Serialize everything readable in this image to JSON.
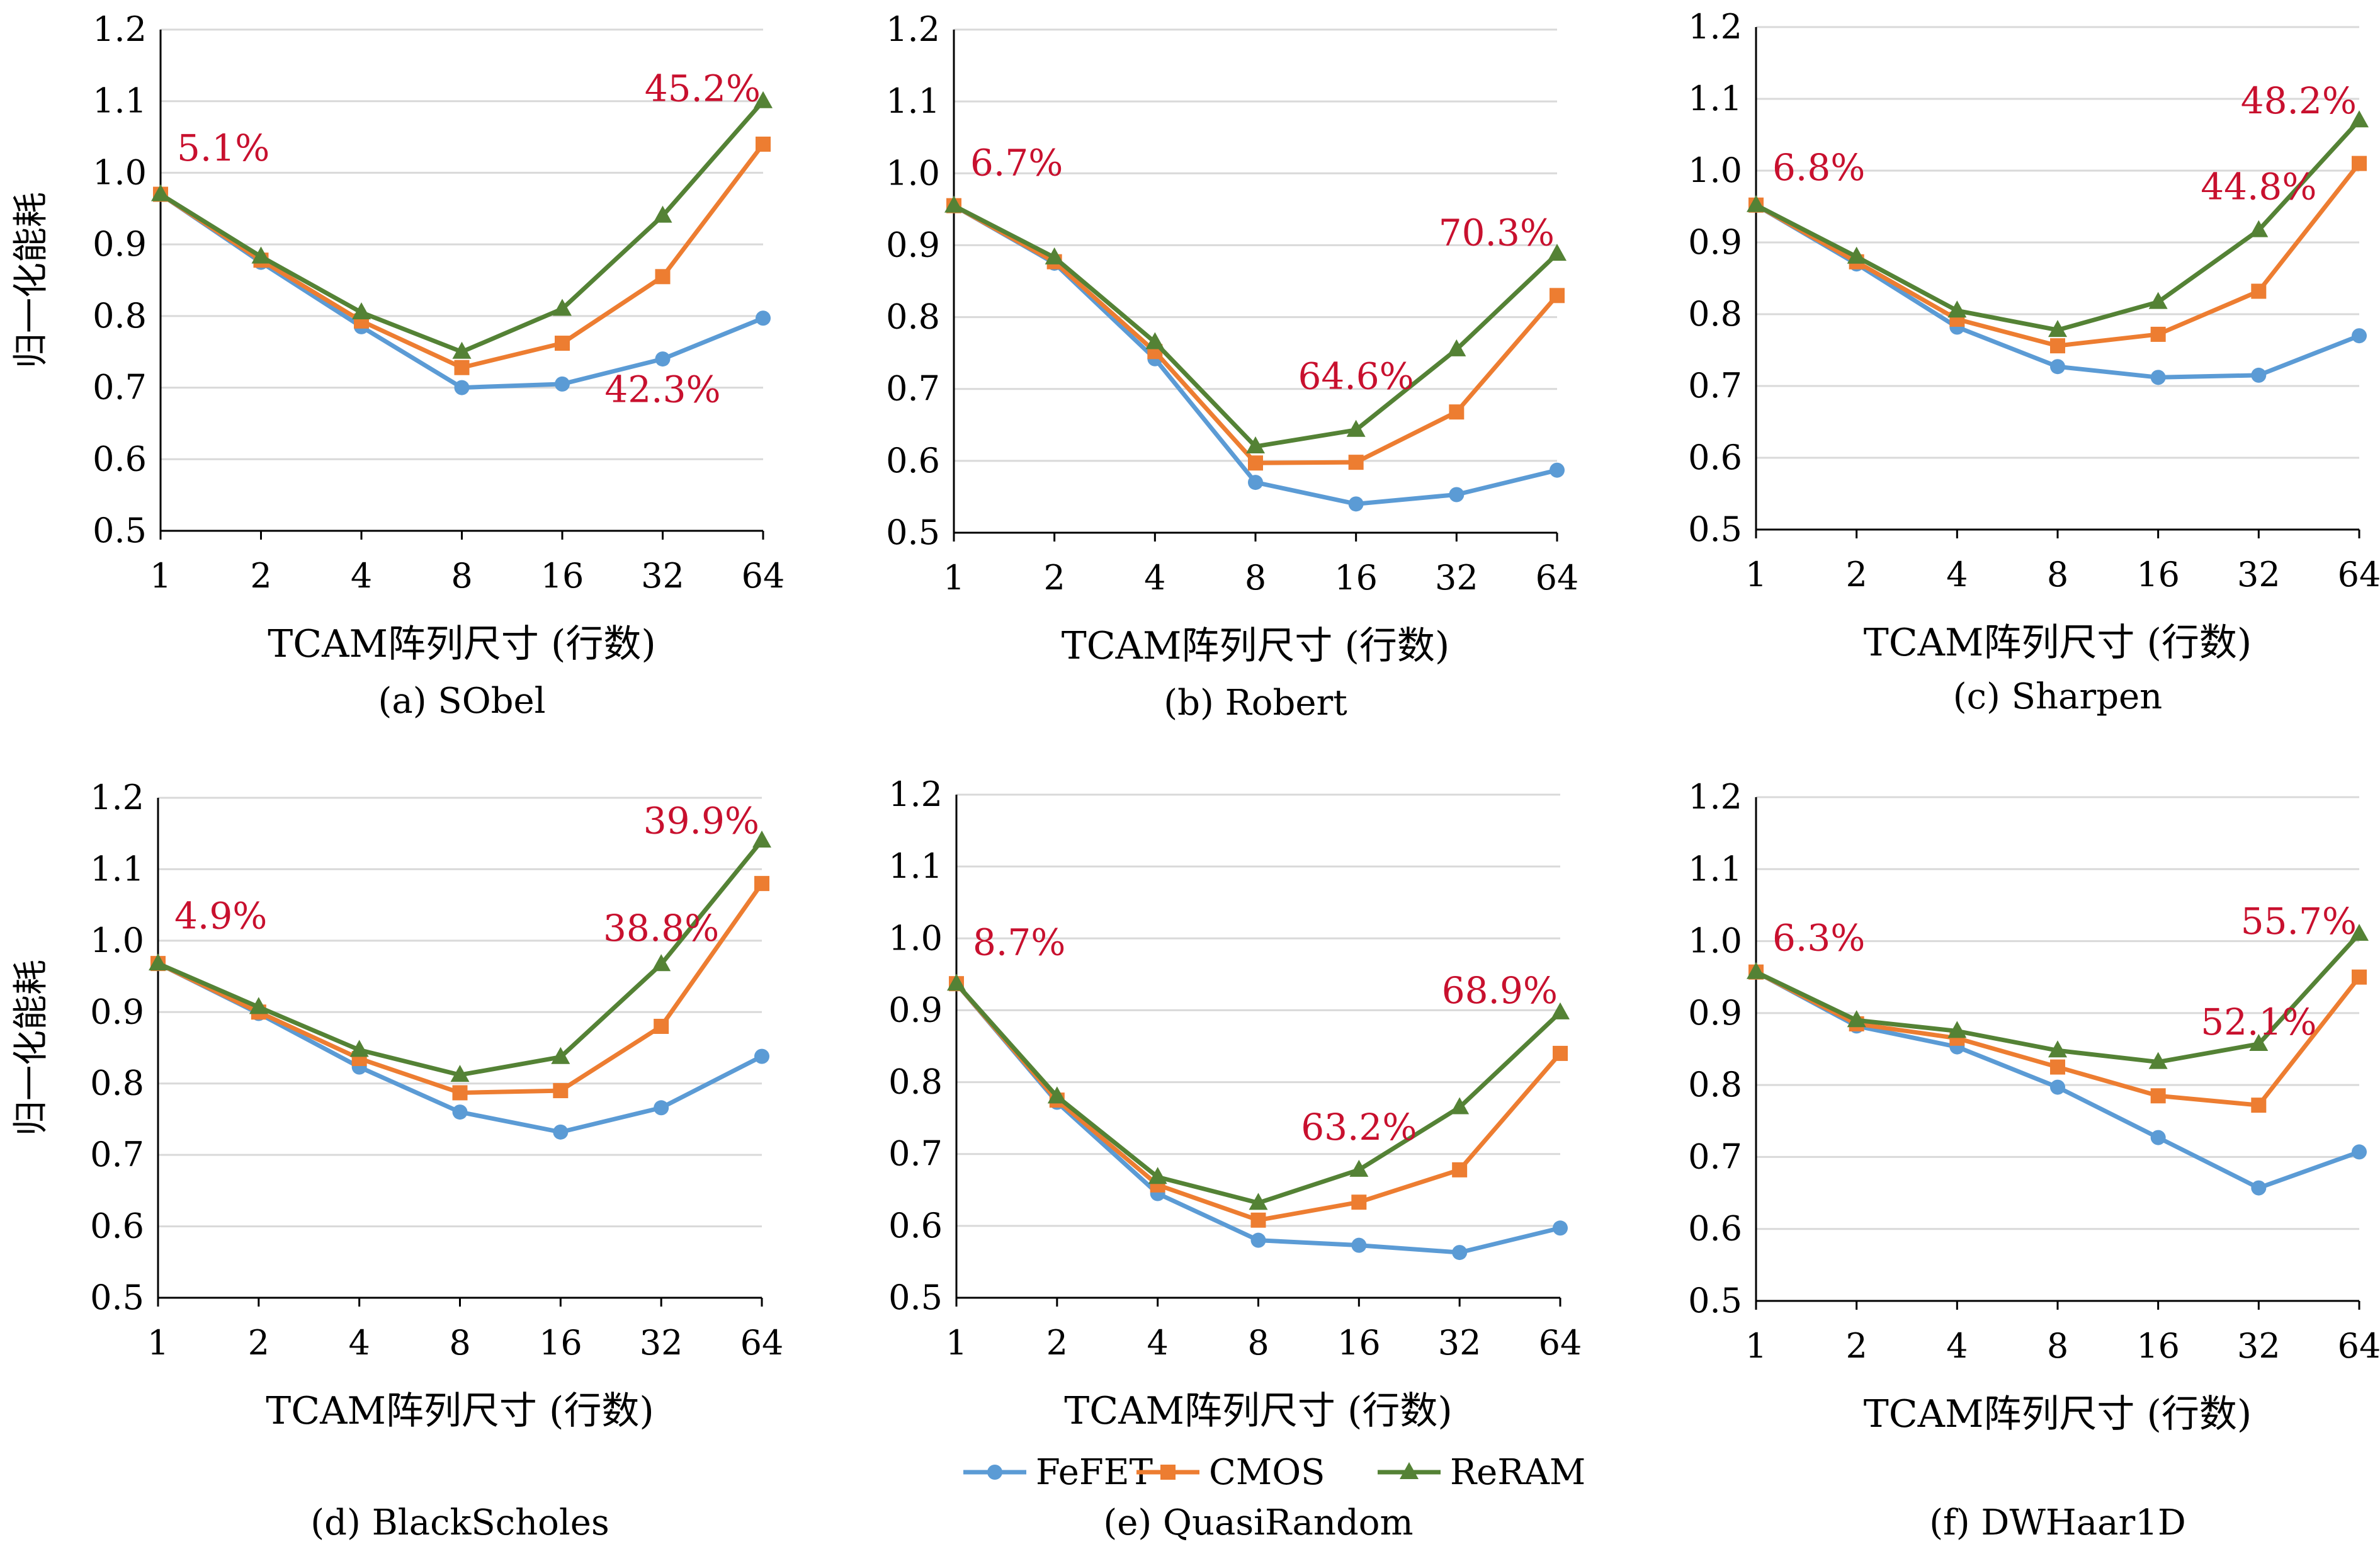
{
  "colors": {
    "FeFET": "#5b9bd5",
    "CMOS": "#ed7d31",
    "ReRAM": "#548235",
    "annotation": "#c8102e",
    "grid": "#d9d9d9"
  },
  "legend": [
    {
      "name": "FeFET",
      "marker": "circle"
    },
    {
      "name": "CMOS",
      "marker": "square"
    },
    {
      "name": "ReRAM",
      "marker": "triangle"
    }
  ],
  "chart_data": [
    {
      "type": "line",
      "title": "(a) SObel",
      "xlabel": "TCAM阵列尺寸 (行数)",
      "ylabel": "归一化能耗",
      "categories": [
        "1",
        "2",
        "4",
        "8",
        "16",
        "32",
        "64"
      ],
      "ylim": [
        0.5,
        1.2
      ],
      "yticks": [
        "0.5",
        "0.6",
        "0.7",
        "0.8",
        "0.9",
        "1.0",
        "1.1",
        "1.2"
      ],
      "grid": true,
      "series": [
        {
          "name": "FeFET",
          "values": [
            0.97,
            0.875,
            0.785,
            0.7,
            0.705,
            0.74,
            0.797
          ]
        },
        {
          "name": "CMOS",
          "values": [
            0.97,
            0.878,
            0.793,
            0.728,
            0.762,
            0.855,
            1.04
          ]
        },
        {
          "name": "ReRAM",
          "values": [
            0.97,
            0.883,
            0.805,
            0.75,
            0.81,
            0.94,
            1.1
          ]
        }
      ],
      "annotations": [
        {
          "text": "5.1%",
          "x": 0,
          "y": 1.01
        },
        {
          "text": "45.2%",
          "x": 6,
          "y": 1.1
        },
        {
          "text": "42.3%",
          "x": 5,
          "y": 0.68
        }
      ]
    },
    {
      "type": "line",
      "title": "(b) Robert",
      "xlabel": "TCAM阵列尺寸 (行数)",
      "ylabel": "",
      "categories": [
        "1",
        "2",
        "4",
        "8",
        "16",
        "32",
        "64"
      ],
      "ylim": [
        0.5,
        1.2
      ],
      "yticks": [
        "0.5",
        "0.6",
        "0.7",
        "0.8",
        "0.9",
        "1.0",
        "1.1",
        "1.2"
      ],
      "grid": true,
      "series": [
        {
          "name": "FeFET",
          "values": [
            0.955,
            0.875,
            0.742,
            0.57,
            0.54,
            0.553,
            0.587
          ]
        },
        {
          "name": "CMOS",
          "values": [
            0.955,
            0.877,
            0.752,
            0.597,
            0.598,
            0.668,
            0.83
          ]
        },
        {
          "name": "ReRAM",
          "values": [
            0.955,
            0.883,
            0.765,
            0.62,
            0.643,
            0.755,
            0.888
          ]
        }
      ],
      "annotations": [
        {
          "text": "6.7%",
          "x": 0,
          "y": 0.99
        },
        {
          "text": "70.3%",
          "x": 6,
          "y": 0.9
        },
        {
          "text": "64.6%",
          "x": 4,
          "y": 0.7
        }
      ]
    },
    {
      "type": "line",
      "title": "(c) Sharpen",
      "xlabel": "TCAM阵列尺寸 (行数)",
      "ylabel": "",
      "categories": [
        "1",
        "2",
        "4",
        "8",
        "16",
        "32",
        "64"
      ],
      "ylim": [
        0.5,
        1.2
      ],
      "yticks": [
        "0.5",
        "0.6",
        "0.7",
        "0.8",
        "0.9",
        "1.0",
        "1.1",
        "1.2"
      ],
      "grid": true,
      "series": [
        {
          "name": "FeFET",
          "values": [
            0.952,
            0.87,
            0.782,
            0.727,
            0.712,
            0.715,
            0.77
          ]
        },
        {
          "name": "CMOS",
          "values": [
            0.952,
            0.873,
            0.793,
            0.756,
            0.772,
            0.832,
            1.01
          ]
        },
        {
          "name": "ReRAM",
          "values": [
            0.952,
            0.88,
            0.805,
            0.778,
            0.817,
            0.917,
            1.07
          ]
        }
      ],
      "annotations": [
        {
          "text": "6.8%",
          "x": 0,
          "y": 0.98
        },
        {
          "text": "48.2%",
          "x": 6,
          "y": 1.08
        },
        {
          "text": "44.8%",
          "x": 5,
          "y": 0.96
        }
      ]
    },
    {
      "type": "line",
      "title": "(d) BlackScholes",
      "xlabel": "TCAM阵列尺寸 (行数)",
      "ylabel": "归一化能耗",
      "categories": [
        "1",
        "2",
        "4",
        "8",
        "16",
        "32",
        "64"
      ],
      "ylim": [
        0.5,
        1.2
      ],
      "yticks": [
        "0.5",
        "0.6",
        "0.7",
        "0.8",
        "0.9",
        "1.0",
        "1.1",
        "1.2"
      ],
      "grid": true,
      "series": [
        {
          "name": "FeFET",
          "values": [
            0.968,
            0.898,
            0.823,
            0.76,
            0.732,
            0.766,
            0.838
          ]
        },
        {
          "name": "CMOS",
          "values": [
            0.968,
            0.9,
            0.835,
            0.787,
            0.79,
            0.88,
            1.08
          ]
        },
        {
          "name": "ReRAM",
          "values": [
            0.968,
            0.907,
            0.847,
            0.812,
            0.837,
            0.967,
            1.14
          ]
        }
      ],
      "annotations": [
        {
          "text": "4.9%",
          "x": 0,
          "y": 1.01
        },
        {
          "text": "39.9%",
          "x": 6,
          "y": 1.15
        },
        {
          "text": "38.8%",
          "x": 5,
          "y": 1.0
        }
      ]
    },
    {
      "type": "line",
      "title": "(e) QuasiRandom",
      "xlabel": "TCAM阵列尺寸 (行数)",
      "ylabel": "",
      "categories": [
        "1",
        "2",
        "4",
        "8",
        "16",
        "32",
        "64"
      ],
      "ylim": [
        0.5,
        1.2
      ],
      "yticks": [
        "0.5",
        "0.6",
        "0.7",
        "0.8",
        "0.9",
        "1.0",
        "1.1",
        "1.2"
      ],
      "grid": true,
      "series": [
        {
          "name": "FeFET",
          "values": [
            0.937,
            0.772,
            0.645,
            0.58,
            0.573,
            0.563,
            0.597
          ]
        },
        {
          "name": "CMOS",
          "values": [
            0.937,
            0.775,
            0.657,
            0.608,
            0.633,
            0.678,
            0.84
          ]
        },
        {
          "name": "ReRAM",
          "values": [
            0.937,
            0.78,
            0.668,
            0.632,
            0.678,
            0.765,
            0.897
          ]
        }
      ],
      "annotations": [
        {
          "text": "8.7%",
          "x": 0,
          "y": 0.97
        },
        {
          "text": "68.9%",
          "x": 6,
          "y": 0.91
        },
        {
          "text": "63.2%",
          "x": 4,
          "y": 0.72
        }
      ]
    },
    {
      "type": "line",
      "title": "(f) DWHaar1D",
      "xlabel": "TCAM阵列尺寸 (行数)",
      "ylabel": "",
      "categories": [
        "1",
        "2",
        "4",
        "8",
        "16",
        "32",
        "64"
      ],
      "ylim": [
        0.5,
        1.2
      ],
      "yticks": [
        "0.5",
        "0.6",
        "0.7",
        "0.8",
        "0.9",
        "1.0",
        "1.1",
        "1.2"
      ],
      "grid": true,
      "series": [
        {
          "name": "FeFET",
          "values": [
            0.957,
            0.882,
            0.853,
            0.797,
            0.727,
            0.657,
            0.707
          ]
        },
        {
          "name": "CMOS",
          "values": [
            0.957,
            0.885,
            0.865,
            0.825,
            0.785,
            0.772,
            0.95
          ]
        },
        {
          "name": "ReRAM",
          "values": [
            0.957,
            0.89,
            0.875,
            0.848,
            0.832,
            0.857,
            1.01
          ]
        }
      ],
      "annotations": [
        {
          "text": "6.3%",
          "x": 0,
          "y": 0.98
        },
        {
          "text": "55.7%",
          "x": 6,
          "y": 1.01
        },
        {
          "text": "52.1%",
          "x": 5,
          "y": 0.87
        }
      ]
    }
  ]
}
